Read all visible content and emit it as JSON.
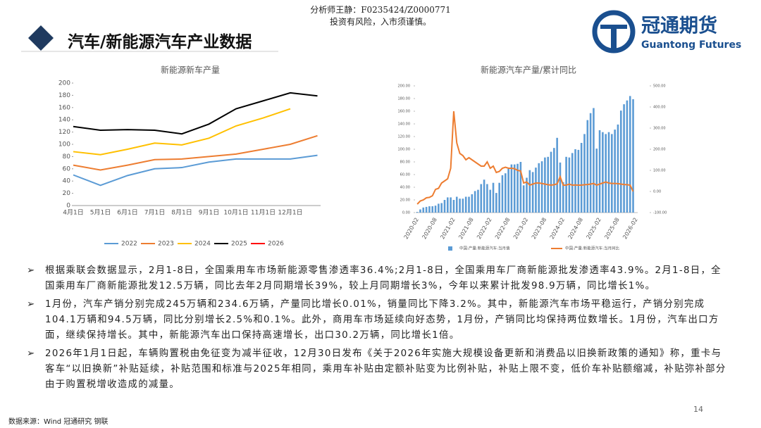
{
  "header": {
    "analyst": "分析师王静：F0235424/Z0000771",
    "risk": "投资有风险，入市须谨慎。",
    "title": "汽车/新能源汽车产业数据",
    "logo_cn": "冠通期货",
    "logo_en": "Guantong Futures"
  },
  "chart_data": [
    {
      "type": "line",
      "title": "新能源新车产量",
      "categories": [
        "4月1日",
        "5月1日",
        "6月1日",
        "7月1日",
        "8月1日",
        "9月1日",
        "10月1日",
        "11月1日",
        "12月1日",
        null
      ],
      "series": [
        {
          "name": "2022",
          "color": "#5b9bd5",
          "values": [
            50,
            33,
            49,
            60,
            62,
            71,
            76,
            76,
            76,
            82
          ]
        },
        {
          "name": "2023",
          "color": "#ed7d31",
          "values": [
            66,
            58,
            66,
            75,
            76,
            80,
            84,
            92,
            100,
            114
          ]
        },
        {
          "name": "2024",
          "color": "#ffc000",
          "values": [
            88,
            83,
            92,
            102,
            99,
            110,
            130,
            143,
            158,
            null
          ]
        },
        {
          "name": "2025",
          "color": "#000000",
          "values": [
            129,
            123,
            124,
            123,
            117,
            133,
            158,
            171,
            184,
            179
          ]
        },
        {
          "name": "2026",
          "color": "#ff0000",
          "values": [
            null,
            null,
            null,
            null,
            null,
            null,
            null,
            null,
            null,
            null
          ]
        }
      ],
      "ylim": [
        0,
        200
      ],
      "yticks": [
        0,
        20,
        40,
        60,
        80,
        100,
        120,
        140,
        160,
        180,
        200
      ],
      "legend": "bottom"
    },
    {
      "type": "bar",
      "title": "新能源汽车产量/累计同比",
      "categories": [
        "2020-02",
        null,
        null,
        null,
        null,
        null,
        "2020-08",
        null,
        null,
        null,
        null,
        null,
        "2021-02",
        null,
        null,
        null,
        null,
        null,
        "2021-08",
        null,
        null,
        null,
        null,
        null,
        "2022-02",
        null,
        null,
        null,
        null,
        null,
        "2022-08",
        null,
        null,
        null,
        null,
        null,
        "2023-02",
        null,
        null,
        null,
        null,
        null,
        "2023-08",
        null,
        null,
        null,
        null,
        null,
        "2024-02",
        null,
        null,
        null,
        null,
        null,
        "2024-08",
        null,
        null,
        null,
        null,
        null,
        "2025-02",
        null,
        null,
        null,
        null,
        null,
        "2025-08",
        null,
        null,
        null,
        null,
        null,
        "2026-02"
      ],
      "series": [
        {
          "name": "中国:产量:新能源汽车:当月值",
          "color": "#5b9bd5",
          "type": "bar",
          "values": [
            1,
            5,
            8,
            9,
            10,
            10,
            11,
            14,
            15,
            20,
            24,
            24,
            20,
            25,
            22,
            22,
            25,
            25,
            29,
            34,
            36,
            45,
            52,
            45,
            36,
            47,
            31,
            47,
            59,
            62,
            69,
            76,
            76,
            77,
            80,
            43,
            55,
            67,
            64,
            71,
            78,
            81,
            87,
            88,
            96,
            102,
            118,
            79,
            48,
            88,
            87,
            94,
            100,
            99,
            110,
            124,
            146,
            157,
            165,
            101,
            130,
            127,
            124,
            127,
            124,
            131,
            139,
            161,
            171,
            177,
            184,
            179,
            null
          ]
        },
        {
          "name": "中国:产量:新能源汽车:当月同比",
          "color": "#ed7d31",
          "type": "line",
          "axis": "y2",
          "values": [
            -60,
            -45,
            -40,
            -30,
            -28,
            -20,
            10,
            15,
            40,
            50,
            60,
            110,
            380,
            230,
            180,
            170,
            150,
            160,
            150,
            140,
            130,
            120,
            120,
            140,
            110,
            120,
            90,
            95,
            110,
            115,
            110,
            110,
            108,
            100,
            97,
            40,
            45,
            30,
            35,
            40,
            40,
            38,
            35,
            32,
            30,
            32,
            36,
            70,
            30,
            30,
            35,
            30,
            31,
            30,
            30,
            32,
            33,
            35,
            38,
            30,
            35,
            40,
            45,
            40,
            38,
            38,
            37,
            35,
            33,
            32,
            30,
            0,
            null
          ]
        }
      ],
      "ylim": [
        0,
        200
      ],
      "yticks": [
        {
          "value": 0,
          "label": "0.00"
        },
        {
          "value": 20,
          "label": "20.00"
        },
        {
          "value": 40,
          "label": "40.00"
        },
        {
          "value": 60,
          "label": "60.00"
        },
        {
          "value": 80,
          "label": "80.00"
        },
        {
          "value": 100,
          "label": "100.00"
        },
        {
          "value": 120,
          "label": "120.00"
        },
        {
          "value": 140,
          "label": "140.00"
        },
        {
          "value": 160,
          "label": "160.00"
        },
        {
          "value": 180,
          "label": "180.00"
        },
        {
          "value": 200,
          "label": "200.00"
        }
      ],
      "y2lim": [
        -100,
        500
      ],
      "y2ticks": [
        {
          "value": -100,
          "label": "-100.00"
        },
        {
          "value": 0,
          "label": "0.00"
        },
        {
          "value": 100,
          "label": "100.00"
        },
        {
          "value": 200,
          "label": "200.00"
        },
        {
          "value": 300,
          "label": "300.00"
        },
        {
          "value": 400,
          "label": "400.00"
        },
        {
          "value": 500,
          "label": "500.00"
        }
      ],
      "legend": "bottom"
    }
  ],
  "bullets": [
    "根据乘联会数据显示，2月1-8日，全国乘用车市场新能源零售渗透率36.4%;2月1-8日，全国乘用车厂商新能源批发渗透率43.9%。2月1-8日，全国乘用车厂商新能源批发12.5万辆，同比去年2月同期增长39%，较上月同期增长3%，今年以来累计批发98.9万辆，同比增长1%。",
    "1月份，汽车产销分别完成245万辆和234.6万辆，产量同比增长0.01%，销量同比下降3.2%。其中，新能源汽车市场平稳运行，产销分别完成104.1万辆和94.5万辆，同比分别增长2.5%和0.1%。此外，商用车市场延续向好态势，1月份，产销同比均保持两位数增长。1月份，汽车出口方面，继续保持增长。其中，新能源汽车出口保持高速增长，出口30.2万辆，同比增长1倍。",
    "2026年1月1日起，车辆购置税由免征变为减半征收，12月30日发布《关于2026年实施大规模设备更新和消费品以旧换新政策的通知》称，重卡与客车“以旧换新”补贴延续，补贴范围和标准与2025年相同，乘用车补贴由定额补贴变为比例补贴，补贴上限不变，低价车补贴额缩减，补贴弥补部分由于购置税增收造成的减量。"
  ],
  "footer": {
    "page": "14",
    "source": "数据来源：Wind 冠通研究 钢联"
  }
}
